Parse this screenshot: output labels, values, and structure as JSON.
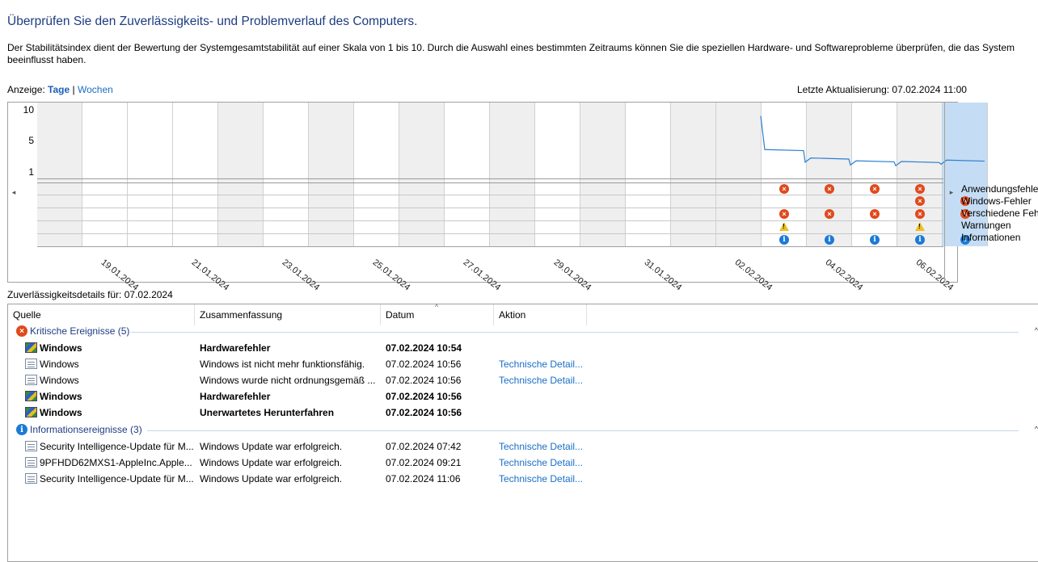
{
  "page": {
    "title": "Überprüfen Sie den Zuverlässigkeits- und Problemverlauf des Computers.",
    "description": "Der Stabilitätsindex dient der Bewertung der Systemgesamtstabilität auf einer Skala von 1 bis 10. Durch die Auswahl eines bestimmten Zeitraums können Sie die speziellen Hardware- und Softwareprobleme überprüfen, die das System beeinflusst haben.",
    "view_label": "Anzeige:",
    "view_days": "Tage",
    "view_separator": "|",
    "view_weeks": "Wochen",
    "last_update": "Letzte Aktualisierung: 07.02.2024 11:00"
  },
  "chart": {
    "y_ticks": [
      "10",
      "5",
      "1"
    ],
    "x_labels": [
      "19.01.2024",
      "21.01.2024",
      "23.01.2024",
      "25.01.2024",
      "27.01.2024",
      "29.01.2024",
      "31.01.2024",
      "02.02.2024",
      "04.02.2024",
      "06.02.2024"
    ],
    "legend": [
      "Anwendungsfehler",
      "Windows-Fehler",
      "Verschiedene Fehler",
      "Warnungen",
      "Informationen"
    ],
    "nav_left": "◂",
    "nav_right": "▸",
    "colors": {
      "error": "#e04a1c",
      "info": "#1c7ad6",
      "warning": "#f0c020",
      "line": "#2b7fd0",
      "selected": "#c4ddf4"
    }
  },
  "chart_data": {
    "type": "line",
    "title": "",
    "xlabel": "",
    "ylabel": "",
    "ylim": [
      1,
      10
    ],
    "x": [
      "18.01.2024",
      "19.01.2024",
      "20.01.2024",
      "21.01.2024",
      "22.01.2024",
      "23.01.2024",
      "24.01.2024",
      "25.01.2024",
      "26.01.2024",
      "27.01.2024",
      "28.01.2024",
      "29.01.2024",
      "30.01.2024",
      "31.01.2024",
      "01.02.2024",
      "02.02.2024",
      "03.02.2024",
      "04.02.2024",
      "05.02.2024",
      "06.02.2024",
      "07.02.2024"
    ],
    "series": [
      {
        "values": [
          null,
          null,
          null,
          null,
          null,
          null,
          null,
          null,
          null,
          null,
          null,
          null,
          null,
          null,
          null,
          null,
          4.2,
          3.0,
          2.6,
          2.5,
          2.7
        ]
      }
    ],
    "selected": "07.02.2024",
    "events": {
      "Anwendungsfehler": [
        "03.02.2024",
        "04.02.2024",
        "05.02.2024",
        "06.02.2024"
      ],
      "Windows-Fehler": [
        "06.02.2024",
        "07.02.2024"
      ],
      "Verschiedene Fehler": [
        "03.02.2024",
        "04.02.2024",
        "05.02.2024",
        "06.02.2024",
        "07.02.2024"
      ],
      "Warnungen": [
        "03.02.2024",
        "06.02.2024"
      ],
      "Informationen": [
        "03.02.2024",
        "04.02.2024",
        "05.02.2024",
        "06.02.2024",
        "07.02.2024"
      ]
    }
  },
  "details": {
    "label": "Zuverlässigkeitsdetails für: 07.02.2024",
    "columns": [
      "Quelle",
      "Zusammenfassung",
      "Datum",
      "Aktion"
    ],
    "sort_glyph": "^",
    "collapse_glyph": "^",
    "groups": [
      {
        "title": "Kritische Ereignisse (5)",
        "icon": "error-icon",
        "glyph": "×",
        "rows": [
          {
            "source": "Windows",
            "summary": "Hardwarefehler",
            "date": "07.02.2024 10:54",
            "action": "",
            "bold": true,
            "icon": "shield"
          },
          {
            "source": "Windows",
            "summary": "Windows ist nicht mehr funktionsfähig.",
            "date": "07.02.2024 10:56",
            "action": "Technische Detail...",
            "bold": false,
            "icon": "doc"
          },
          {
            "source": "Windows",
            "summary": "Windows wurde nicht ordnungsgemäß ...",
            "date": "07.02.2024 10:56",
            "action": "Technische Detail...",
            "bold": false,
            "icon": "doc"
          },
          {
            "source": "Windows",
            "summary": "Hardwarefehler",
            "date": "07.02.2024 10:56",
            "action": "",
            "bold": true,
            "icon": "shield"
          },
          {
            "source": "Windows",
            "summary": "Unerwartetes Herunterfahren",
            "date": "07.02.2024 10:56",
            "action": "",
            "bold": true,
            "icon": "shield"
          }
        ]
      },
      {
        "title": "Informationsereignisse (3)",
        "icon": "info-icon",
        "glyph": "i",
        "rows": [
          {
            "source": "Security Intelligence-Update für M...",
            "summary": "Windows Update war erfolgreich.",
            "date": "07.02.2024 07:42",
            "action": "Technische Detail...",
            "bold": false,
            "icon": "doc"
          },
          {
            "source": "9PFHDD62MXS1-AppleInc.Apple...",
            "summary": "Windows Update war erfolgreich.",
            "date": "07.02.2024 09:21",
            "action": "Technische Detail...",
            "bold": false,
            "icon": "doc"
          },
          {
            "source": "Security Intelligence-Update für M...",
            "summary": "Windows Update war erfolgreich.",
            "date": "07.02.2024 11:06",
            "action": "Technische Detail...",
            "bold": false,
            "icon": "doc"
          }
        ]
      }
    ]
  }
}
